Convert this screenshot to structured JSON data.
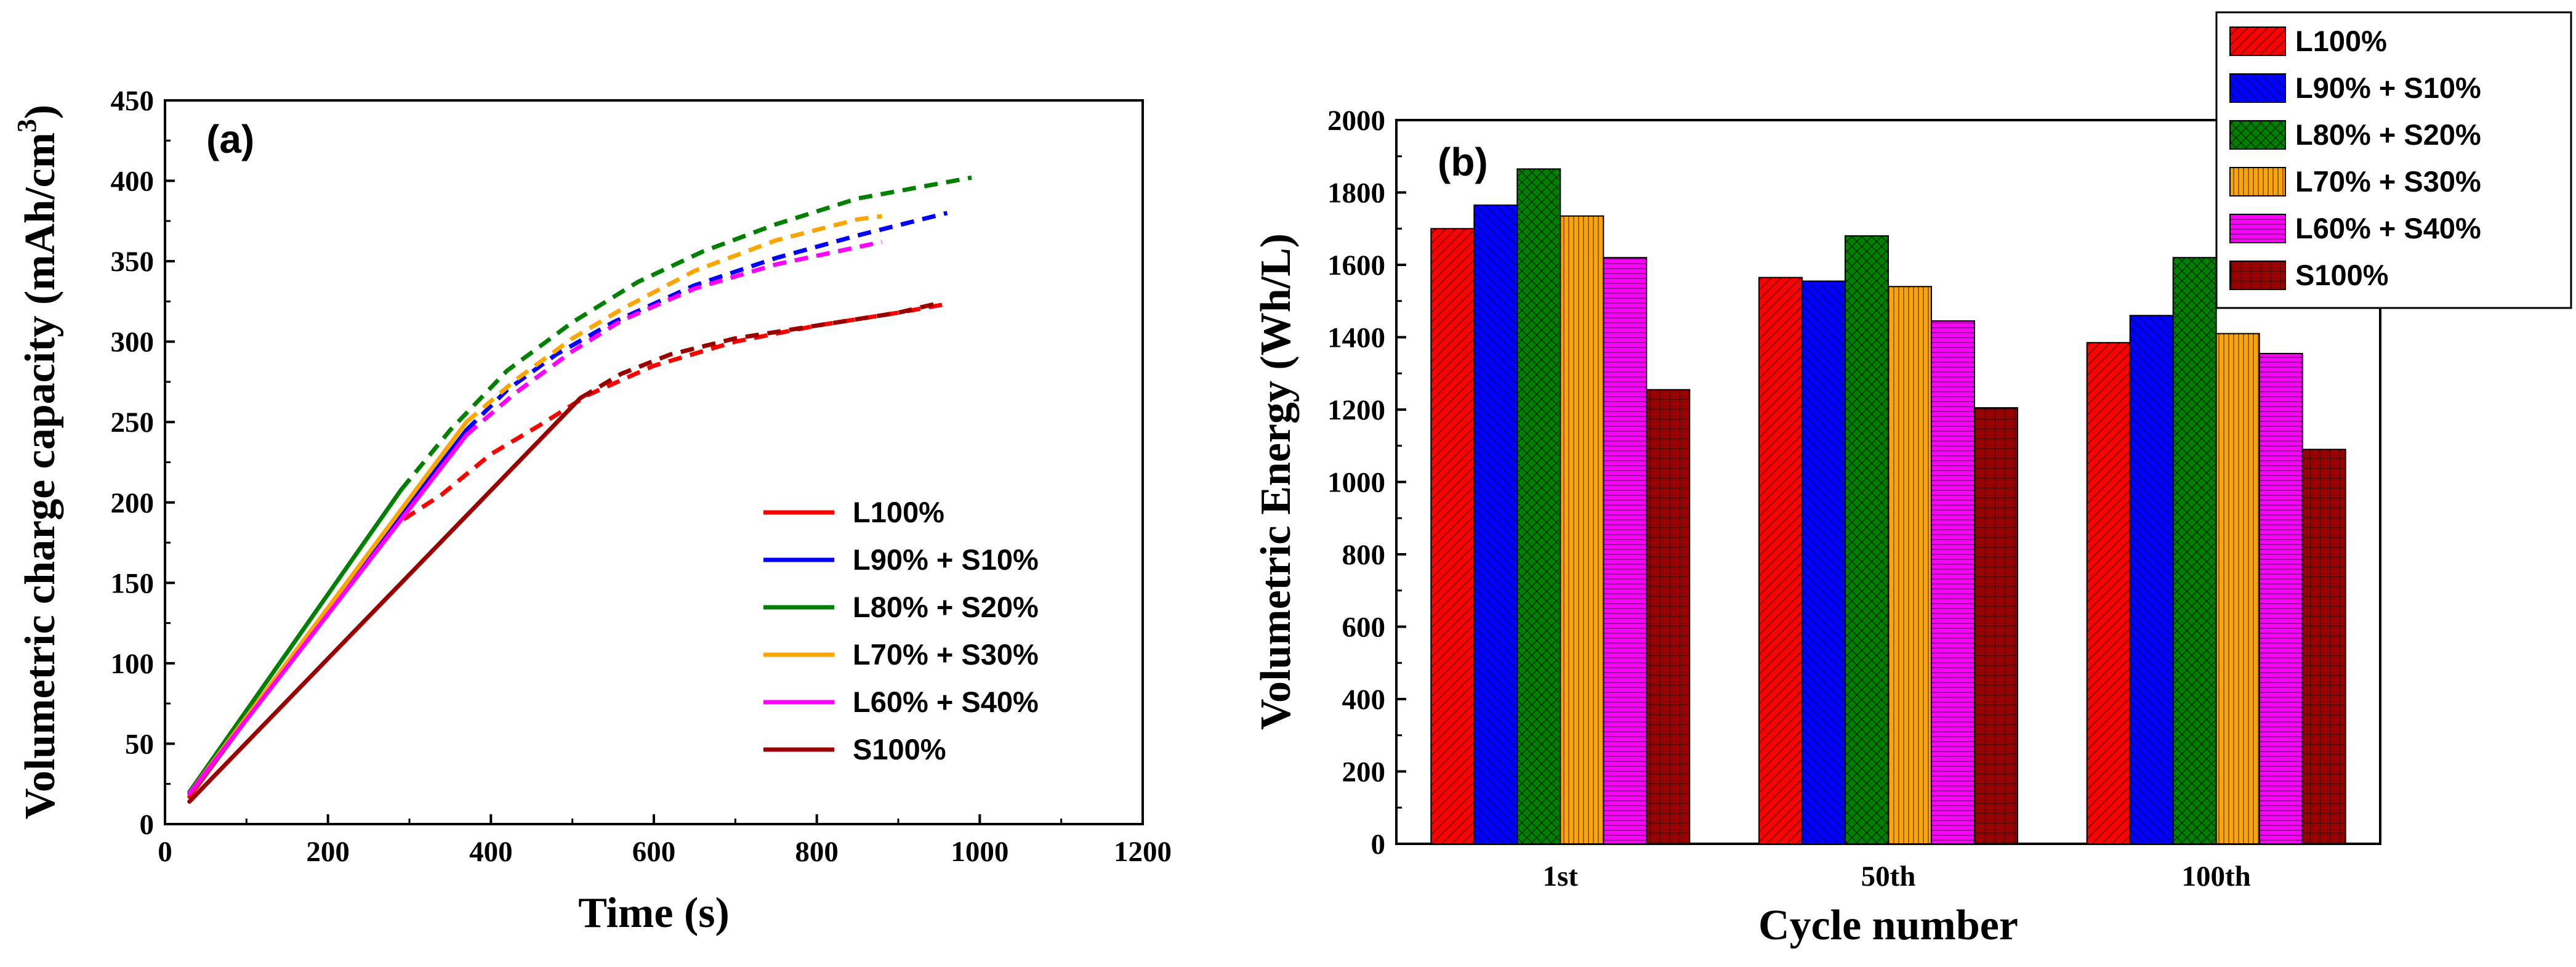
{
  "chart_data": [
    {
      "type": "line",
      "panel_label": "(a)",
      "title": "",
      "xlabel": "Time (s)",
      "ylabel": "Volumetric charge capacity (mAh/cm",
      "ylabel_sup": "3",
      "ylabel_close": ")",
      "xlim": [
        0,
        1200
      ],
      "ylim": [
        0,
        450
      ],
      "xticks": [
        "0",
        "200",
        "400",
        "600",
        "800",
        "1000",
        "1200"
      ],
      "yticks": [
        "0",
        "50",
        "100",
        "150",
        "200",
        "250",
        "300",
        "350",
        "400",
        "450"
      ],
      "legend_position": "center-right",
      "series": [
        {
          "name": "L100%",
          "color": "#ff0000",
          "solid": [
            [
              30,
              17
            ],
            [
              270,
              182
            ]
          ],
          "dashed": [
            [
              270,
              182
            ],
            [
              340,
              205
            ],
            [
              400,
              230
            ],
            [
              460,
              248
            ],
            [
              520,
              267
            ],
            [
              600,
              285
            ],
            [
              700,
              300
            ],
            [
              800,
              310
            ],
            [
              900,
              318
            ],
            [
              955,
              323
            ]
          ]
        },
        {
          "name": "L90% + S10%",
          "color": "#0000ff",
          "solid": [
            [
              30,
              19
            ],
            [
              370,
              245
            ]
          ],
          "dashed": [
            [
              370,
              245
            ],
            [
              420,
              270
            ],
            [
              480,
              292
            ],
            [
              550,
              312
            ],
            [
              650,
              335
            ],
            [
              750,
              352
            ],
            [
              850,
              366
            ],
            [
              960,
              380
            ]
          ]
        },
        {
          "name": "L80% + S20%",
          "color": "#008000",
          "solid": [
            [
              30,
              20
            ],
            [
              290,
              208
            ]
          ],
          "dashed": [
            [
              290,
              208
            ],
            [
              350,
              245
            ],
            [
              420,
              282
            ],
            [
              500,
              312
            ],
            [
              580,
              337
            ],
            [
              660,
              356
            ],
            [
              750,
              373
            ],
            [
              850,
              389
            ],
            [
              990,
              402
            ]
          ]
        },
        {
          "name": "L70% + S30%",
          "color": "#ffa500",
          "solid": [
            [
              30,
              19
            ],
            [
              370,
              250
            ]
          ],
          "dashed": [
            [
              370,
              250
            ],
            [
              430,
              276
            ],
            [
              500,
              302
            ],
            [
              560,
              320
            ],
            [
              650,
              344
            ],
            [
              750,
              363
            ],
            [
              850,
              376
            ],
            [
              880,
              378
            ]
          ]
        },
        {
          "name": "L60% + S40%",
          "color": "#ff00ff",
          "solid": [
            [
              30,
              19
            ],
            [
              370,
              242
            ]
          ],
          "dashed": [
            [
              370,
              242
            ],
            [
              430,
              268
            ],
            [
              500,
              294
            ],
            [
              560,
              313
            ],
            [
              650,
              333
            ],
            [
              750,
              348
            ],
            [
              880,
              362
            ]
          ]
        },
        {
          "name": "S100%",
          "color": "#990000",
          "solid": [
            [
              30,
              14
            ],
            [
              510,
              265
            ]
          ],
          "dashed": [
            [
              510,
              265
            ],
            [
              560,
              280
            ],
            [
              620,
              292
            ],
            [
              700,
              302
            ],
            [
              800,
              310
            ],
            [
              900,
              318
            ],
            [
              950,
              324
            ]
          ]
        }
      ]
    },
    {
      "type": "bar",
      "panel_label": "(b)",
      "title": "",
      "xlabel": "Cycle number",
      "ylabel": "Volumetric Energy (Wh/L)",
      "ylim": [
        0,
        2000
      ],
      "yticks": [
        "0",
        "200",
        "400",
        "600",
        "800",
        "1000",
        "1200",
        "1400",
        "1600",
        "1800",
        "2000"
      ],
      "categories": [
        "1st",
        "50th",
        "100th"
      ],
      "legend_position": "top-right",
      "series": [
        {
          "name": "L100%",
          "color": "#ff0000",
          "pattern": "diag-right",
          "values": [
            1700,
            1565,
            1385
          ]
        },
        {
          "name": "L90% + S10%",
          "color": "#0000ff",
          "pattern": "diag-left",
          "values": [
            1765,
            1555,
            1460
          ]
        },
        {
          "name": "L80% + S20%",
          "color": "#008000",
          "pattern": "diag-cross",
          "values": [
            1865,
            1680,
            1620
          ]
        },
        {
          "name": "L70% + S30%",
          "color": "#ffa500",
          "pattern": "vertical",
          "values": [
            1735,
            1540,
            1410
          ]
        },
        {
          "name": "L60% + S40%",
          "color": "#ff00ff",
          "pattern": "horizontal",
          "values": [
            1620,
            1445,
            1355
          ]
        },
        {
          "name": "S100%",
          "color": "#990000",
          "pattern": "grid",
          "values": [
            1255,
            1205,
            1090
          ]
        }
      ]
    }
  ]
}
